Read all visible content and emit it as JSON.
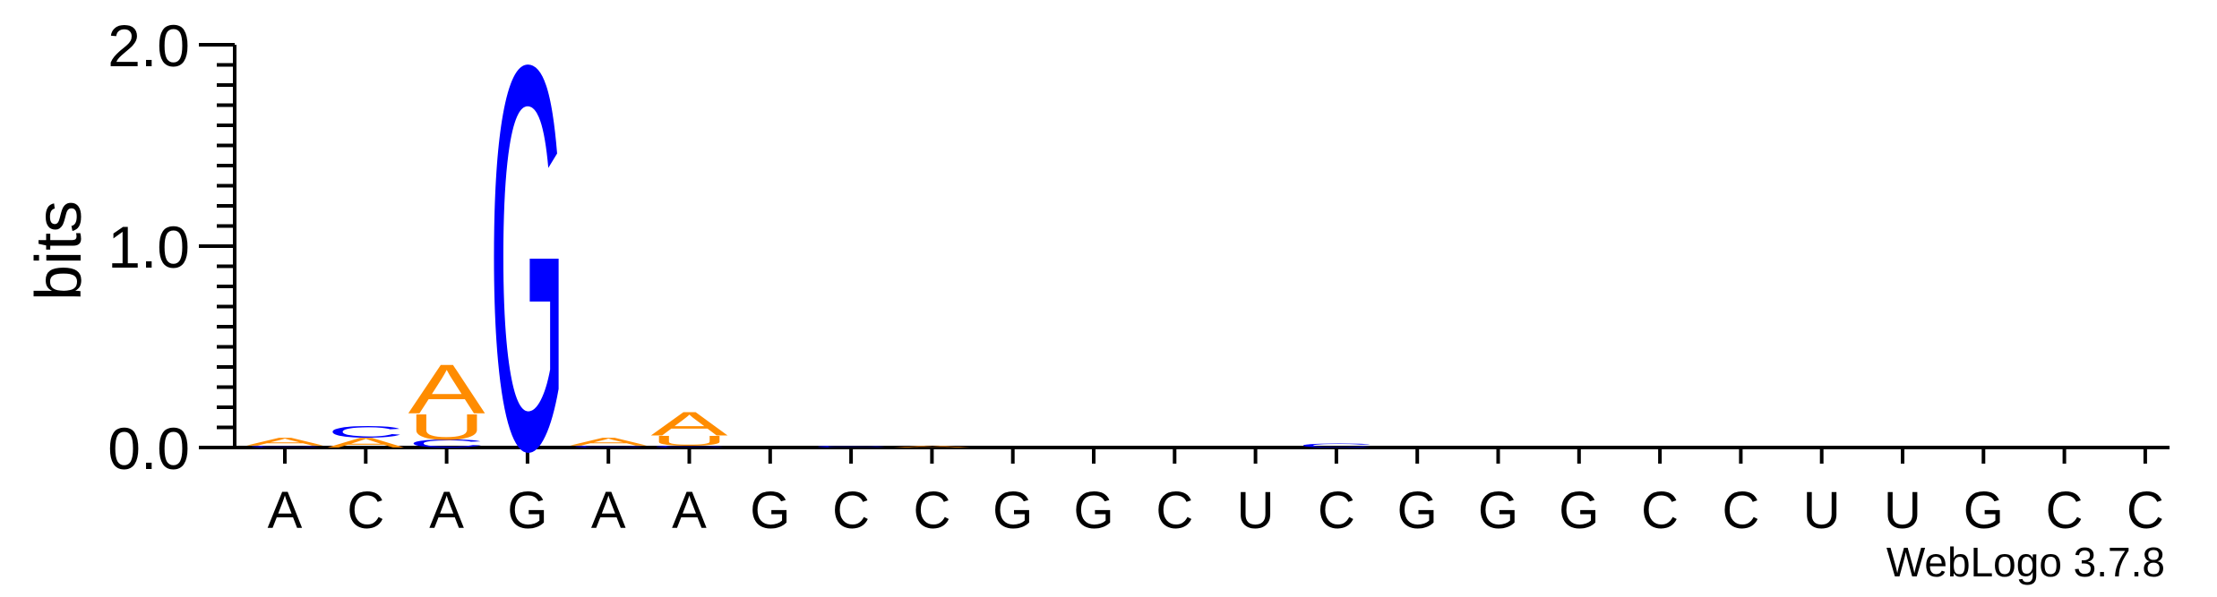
{
  "chart_data": {
    "type": "sequence-logo",
    "ylabel": "bits",
    "ylim": [
      0,
      2.0
    ],
    "yticks": [
      "0.0",
      "1.0",
      "2.0"
    ],
    "x_labels": [
      "A",
      "C",
      "A",
      "G",
      "A",
      "A",
      "G",
      "C",
      "C",
      "G",
      "G",
      "C",
      "U",
      "C",
      "G",
      "G",
      "G",
      "C",
      "C",
      "U",
      "U",
      "G",
      "C",
      "C"
    ],
    "credit": "WebLogo 3.7.8",
    "colors": {
      "A": "#ff8c00",
      "C": "#0000ff",
      "G": "#0000ff",
      "U": "#ff8c00"
    },
    "stacks": [
      [
        {
          "letter": "C",
          "bits": 0.01
        },
        {
          "letter": "A",
          "bits": 0.04
        }
      ],
      [
        {
          "letter": "A",
          "bits": 0.05
        },
        {
          "letter": "C",
          "bits": 0.06
        }
      ],
      [
        {
          "letter": "C",
          "bits": 0.04
        },
        {
          "letter": "U",
          "bits": 0.13
        },
        {
          "letter": "A",
          "bits": 0.25
        }
      ],
      [
        {
          "letter": "G",
          "bits": 1.95
        }
      ],
      [
        {
          "letter": "C",
          "bits": 0.01
        },
        {
          "letter": "A",
          "bits": 0.04
        }
      ],
      [
        {
          "letter": "C",
          "bits": 0.01
        },
        {
          "letter": "U",
          "bits": 0.05
        },
        {
          "letter": "A",
          "bits": 0.12
        }
      ],
      [],
      [
        {
          "letter": "C",
          "bits": 0.01
        }
      ],
      [
        {
          "letter": "A",
          "bits": 0.01
        }
      ],
      [],
      [],
      [],
      [],
      [
        {
          "letter": "C",
          "bits": 0.02
        }
      ],
      [],
      [],
      [],
      [],
      [],
      [],
      [],
      [],
      [],
      []
    ]
  }
}
